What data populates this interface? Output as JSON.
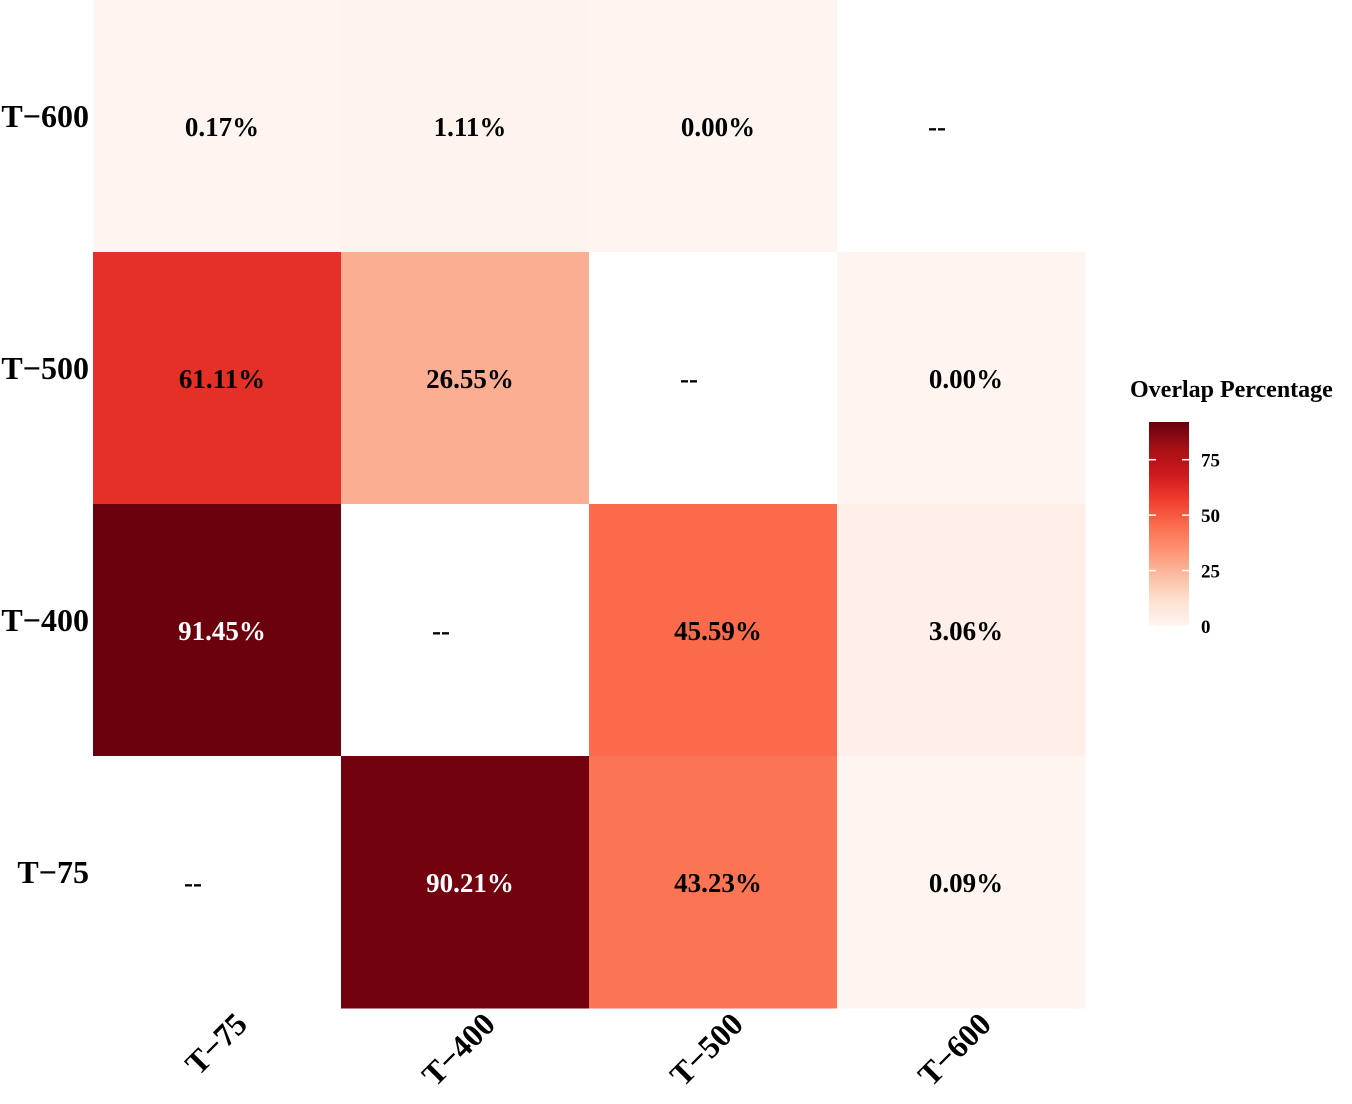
{
  "chart_data": {
    "type": "heatmap",
    "x_categories": [
      "T−75",
      "T−400",
      "T−500",
      "T−600"
    ],
    "y_categories": [
      "T−75",
      "T−400",
      "T−500",
      "T−600"
    ],
    "cells": [
      {
        "x": "T−75",
        "y": "T−600",
        "value": 0.17,
        "label": "0.17%"
      },
      {
        "x": "T−400",
        "y": "T−600",
        "value": 1.11,
        "label": "1.11%"
      },
      {
        "x": "T−500",
        "y": "T−600",
        "value": 0.0,
        "label": "0.00%"
      },
      {
        "x": "T−600",
        "y": "T−600",
        "value": null,
        "label": "--"
      },
      {
        "x": "T−75",
        "y": "T−500",
        "value": 61.11,
        "label": "61.11%"
      },
      {
        "x": "T−400",
        "y": "T−500",
        "value": 26.55,
        "label": "26.55%"
      },
      {
        "x": "T−500",
        "y": "T−500",
        "value": null,
        "label": "--"
      },
      {
        "x": "T−600",
        "y": "T−500",
        "value": 0.0,
        "label": "0.00%"
      },
      {
        "x": "T−75",
        "y": "T−400",
        "value": 91.45,
        "label": "91.45%"
      },
      {
        "x": "T−400",
        "y": "T−400",
        "value": null,
        "label": "--"
      },
      {
        "x": "T−500",
        "y": "T−400",
        "value": 45.59,
        "label": "45.59%"
      },
      {
        "x": "T−600",
        "y": "T−400",
        "value": 3.06,
        "label": "3.06%"
      },
      {
        "x": "T−75",
        "y": "T−75",
        "value": null,
        "label": "--"
      },
      {
        "x": "T−400",
        "y": "T−75",
        "value": 90.21,
        "label": "90.21%"
      },
      {
        "x": "T−500",
        "y": "T−75",
        "value": 43.23,
        "label": "43.23%"
      },
      {
        "x": "T−600",
        "y": "T−75",
        "value": 0.09,
        "label": "0.09%"
      }
    ],
    "legend": {
      "title": "Overlap Percentage",
      "range": [
        0,
        92
      ],
      "ticks": [
        0,
        25,
        50,
        75
      ],
      "placement": "right"
    },
    "color_scale": [
      "#fff5f0",
      "#fee0d2",
      "#fcbba1",
      "#fc9272",
      "#fb6a4a",
      "#ef3b2c",
      "#cb181d",
      "#a50f15",
      "#67000d"
    ],
    "na_color": "#ffffff",
    "text_color_dark": "#000000",
    "text_color_light": "#ffffff"
  }
}
